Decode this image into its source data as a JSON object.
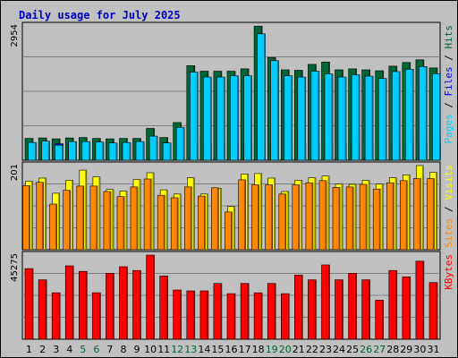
{
  "title": "Daily usage for July 2025",
  "colors": {
    "background": "#c0c0c0",
    "panel": "#c0c0c0",
    "hits": "#006633",
    "files": "#0000ff",
    "pages": "#00ccff",
    "visits": "#ffff00",
    "sites": "#ff8800",
    "kbytes": "#ff0000",
    "weekday_label": "#000000",
    "weekend_label": "#006633",
    "title": "#0000cc"
  },
  "chart_data": [
    {
      "type": "bar",
      "panel": "hits-files-pages",
      "y_max_label": "2954",
      "ylim": [
        0,
        2954
      ],
      "right_label": [
        {
          "text": "Pages",
          "color": "#00ccff"
        },
        {
          "text": " / ",
          "color": "#000000"
        },
        {
          "text": "Files",
          "color": "#0000ff"
        },
        {
          "text": " / ",
          "color": "#000000"
        },
        {
          "text": "Hits",
          "color": "#006633"
        }
      ],
      "categories": [
        "1",
        "2",
        "3",
        "4",
        "5",
        "6",
        "7",
        "8",
        "9",
        "10",
        "11",
        "12",
        "13",
        "14",
        "15",
        "16",
        "17",
        "18",
        "19",
        "20",
        "21",
        "22",
        "23",
        "24",
        "25",
        "26",
        "27",
        "28",
        "29",
        "30",
        "31"
      ],
      "series": [
        {
          "name": "Hits",
          "color": "#006633",
          "values": [
            480,
            490,
            470,
            490,
            500,
            480,
            470,
            480,
            480,
            700,
            500,
            830,
            2080,
            1960,
            1960,
            1960,
            2010,
            2950,
            2260,
            1990,
            1980,
            2110,
            2160,
            1990,
            2010,
            1990,
            1970,
            2070,
            2150,
            2210,
            2030
          ]
        },
        {
          "name": "Files",
          "color": "#0000ff",
          "values": [
            370,
            370,
            360,
            370,
            370,
            370,
            370,
            370,
            370,
            400,
            370,
            370,
            380,
            390,
            380,
            380,
            390,
            400,
            410,
            390,
            380,
            380,
            390,
            370,
            380,
            380,
            370,
            390,
            390,
            390,
            390
          ]
        },
        {
          "name": "Pages",
          "color": "#00ccff",
          "values": [
            390,
            420,
            330,
            410,
            410,
            400,
            380,
            390,
            410,
            530,
            380,
            720,
            1940,
            1830,
            1830,
            1860,
            1860,
            2780,
            2190,
            1860,
            1830,
            1960,
            1900,
            1830,
            1880,
            1850,
            1800,
            1950,
            2000,
            2060,
            1900
          ]
        }
      ]
    },
    {
      "type": "bar",
      "panel": "visits-sites",
      "y_max_label": "201",
      "ylim": [
        0,
        201
      ],
      "right_label": [
        {
          "text": "Sites",
          "color": "#ff8800"
        },
        {
          "text": " / ",
          "color": "#000000"
        },
        {
          "text": "Visits",
          "color": "#ffff00"
        }
      ],
      "categories": [
        "1",
        "2",
        "3",
        "4",
        "5",
        "6",
        "7",
        "8",
        "9",
        "10",
        "11",
        "12",
        "13",
        "14",
        "15",
        "16",
        "17",
        "18",
        "19",
        "20",
        "21",
        "22",
        "23",
        "24",
        "25",
        "26",
        "27",
        "28",
        "29",
        "30",
        "31"
      ],
      "series": [
        {
          "name": "Visits",
          "color": "#ffff00",
          "values": [
            164,
            171,
            135,
            166,
            190,
            174,
            144,
            140,
            168,
            184,
            143,
            133,
            172,
            133,
            147,
            103,
            181,
            182,
            171,
            139,
            166,
            172,
            176,
            157,
            156,
            166,
            157,
            172,
            179,
            201,
            185
          ]
        },
        {
          "name": "Sites",
          "color": "#ff8800",
          "values": [
            153,
            161,
            109,
            142,
            152,
            152,
            139,
            127,
            150,
            169,
            130,
            124,
            150,
            128,
            148,
            90,
            167,
            155,
            155,
            133,
            155,
            160,
            165,
            149,
            150,
            156,
            145,
            160,
            165,
            170,
            170
          ]
        }
      ]
    },
    {
      "type": "bar",
      "panel": "kbytes",
      "y_max_label": "45275",
      "ylim": [
        0,
        45275
      ],
      "right_label": [
        {
          "text": "KBytes",
          "color": "#ff0000"
        }
      ],
      "categories": [
        "1",
        "2",
        "3",
        "4",
        "5",
        "6",
        "7",
        "8",
        "9",
        "10",
        "11",
        "12",
        "13",
        "14",
        "15",
        "16",
        "17",
        "18",
        "19",
        "20",
        "21",
        "22",
        "23",
        "24",
        "25",
        "26",
        "27",
        "28",
        "29",
        "30",
        "31"
      ],
      "series": [
        {
          "name": "KBytes",
          "color": "#ff0000",
          "values": [
            38000,
            32000,
            25000,
            39500,
            36500,
            25000,
            35500,
            39000,
            37000,
            45275,
            34000,
            26500,
            26000,
            26000,
            30000,
            24500,
            30000,
            25000,
            30000,
            24500,
            34500,
            32000,
            40000,
            32000,
            35500,
            32000,
            21000,
            37000,
            33500,
            42000,
            30500
          ]
        }
      ]
    }
  ],
  "days": [
    {
      "label": "1",
      "weekend": false
    },
    {
      "label": "2",
      "weekend": false
    },
    {
      "label": "3",
      "weekend": false
    },
    {
      "label": "4",
      "weekend": false
    },
    {
      "label": "5",
      "weekend": true
    },
    {
      "label": "6",
      "weekend": true
    },
    {
      "label": "7",
      "weekend": false
    },
    {
      "label": "8",
      "weekend": false
    },
    {
      "label": "9",
      "weekend": false
    },
    {
      "label": "10",
      "weekend": false
    },
    {
      "label": "11",
      "weekend": false
    },
    {
      "label": "12",
      "weekend": true
    },
    {
      "label": "13",
      "weekend": true
    },
    {
      "label": "14",
      "weekend": false
    },
    {
      "label": "15",
      "weekend": false
    },
    {
      "label": "16",
      "weekend": false
    },
    {
      "label": "17",
      "weekend": false
    },
    {
      "label": "18",
      "weekend": false
    },
    {
      "label": "19",
      "weekend": true
    },
    {
      "label": "20",
      "weekend": true
    },
    {
      "label": "21",
      "weekend": false
    },
    {
      "label": "22",
      "weekend": false
    },
    {
      "label": "23",
      "weekend": false
    },
    {
      "label": "24",
      "weekend": false
    },
    {
      "label": "25",
      "weekend": false
    },
    {
      "label": "26",
      "weekend": true
    },
    {
      "label": "27",
      "weekend": true
    },
    {
      "label": "28",
      "weekend": false
    },
    {
      "label": "29",
      "weekend": false
    },
    {
      "label": "30",
      "weekend": false
    },
    {
      "label": "31",
      "weekend": false
    }
  ]
}
